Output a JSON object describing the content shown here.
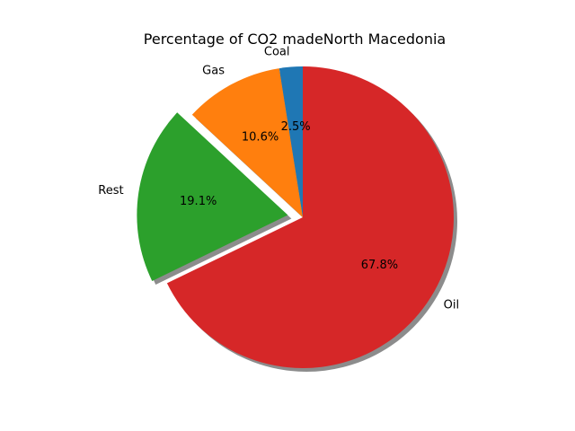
{
  "chart_data": {
    "type": "pie",
    "title": "Percentage of CO2 madeNorth Macedonia",
    "slices": [
      {
        "label": "Coal",
        "value": 2.5,
        "pct_label": "2.5%",
        "color": "#1f77b4",
        "exploded": false
      },
      {
        "label": "Gas",
        "value": 10.6,
        "pct_label": "10.6%",
        "color": "#ff7f0e",
        "exploded": false
      },
      {
        "label": "Rest",
        "value": 19.1,
        "pct_label": "19.1%",
        "color": "#2ca02c",
        "exploded": true
      },
      {
        "label": "Oil",
        "value": 67.8,
        "pct_label": "67.8%",
        "color": "#d62728",
        "exploded": false
      }
    ],
    "start_angle_deg": 90,
    "direction": "counterclockwise",
    "shadow": true
  }
}
